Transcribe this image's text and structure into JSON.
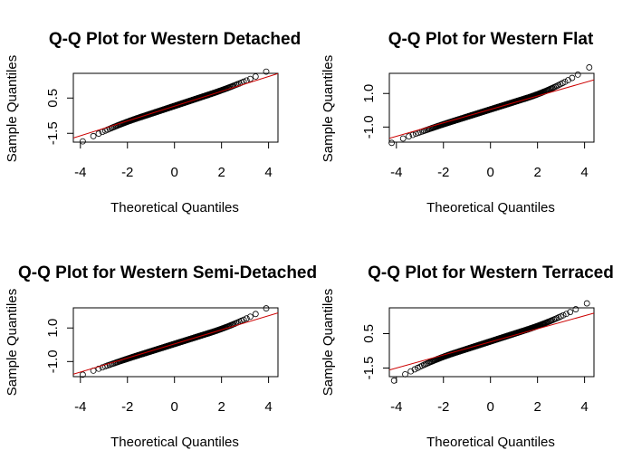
{
  "chart_data": [
    {
      "type": "scatter",
      "title": "Q-Q Plot for Western Detached",
      "xlabel": "Theoretical Quantiles",
      "ylabel": "Sample Quantiles",
      "xlim": [
        -4.3,
        4.4
      ],
      "ylim": [
        -2.0,
        1.9
      ],
      "xticks": [
        -4,
        -2,
        0,
        2,
        4
      ],
      "yticks": [
        -1.5,
        0.5
      ],
      "ytick_labels": [
        "-1.5",
        "0.5"
      ],
      "n_points": 400,
      "x_extent": [
        -3.9,
        3.9
      ],
      "dist": {
        "slope": 0.44,
        "intercept": 0.05,
        "lower_tail": 0.05,
        "upper_tail": 0.04
      },
      "reference_line": {
        "slope": 0.42,
        "intercept": 0.04
      },
      "grid": false,
      "point_color": "#000000",
      "line_color": "#cc0000"
    },
    {
      "type": "scatter",
      "title": "Q-Q Plot for Western Flat",
      "xlabel": "Theoretical Quantiles",
      "ylabel": "Sample Quantiles",
      "xlim": [
        -4.3,
        4.4
      ],
      "ylim": [
        -1.9,
        2.2
      ],
      "xticks": [
        -4,
        -2,
        0,
        2,
        4
      ],
      "yticks": [
        -1.0,
        1.0
      ],
      "ytick_labels": [
        "-1.0",
        "1.0"
      ],
      "n_points": 400,
      "x_extent": [
        -4.2,
        4.2
      ],
      "dist": {
        "slope": 0.44,
        "intercept": 0.05,
        "lower_tail": 0.02,
        "upper_tail": 0.09
      },
      "reference_line": {
        "slope": 0.4,
        "intercept": 0.05
      },
      "grid": false,
      "point_color": "#000000",
      "line_color": "#cc0000"
    },
    {
      "type": "scatter",
      "title": "Q-Q Plot for Western Semi-Detached",
      "xlabel": "Theoretical Quantiles",
      "ylabel": "Sample Quantiles",
      "xlim": [
        -4.3,
        4.4
      ],
      "ylim": [
        -1.9,
        2.2
      ],
      "xticks": [
        -4,
        -2,
        0,
        2,
        4
      ],
      "yticks": [
        -1.0,
        1.0
      ],
      "ytick_labels": [
        "-1.0",
        "1.0"
      ],
      "n_points": 400,
      "x_extent": [
        -3.9,
        3.9
      ],
      "dist": {
        "slope": 0.44,
        "intercept": 0.05,
        "lower_tail": 0.02,
        "upper_tail": 0.07
      },
      "reference_line": {
        "slope": 0.42,
        "intercept": 0.05
      },
      "grid": false,
      "point_color": "#000000",
      "line_color": "#cc0000"
    },
    {
      "type": "scatter",
      "title": "Q-Q Plot for Western Terraced",
      "xlabel": "Theoretical Quantiles",
      "ylabel": "Sample Quantiles",
      "xlim": [
        -4.3,
        4.4
      ],
      "ylim": [
        -2.0,
        2.0
      ],
      "xticks": [
        -4,
        -2,
        0,
        2,
        4
      ],
      "yticks": [
        -1.5,
        0.5
      ],
      "ytick_labels": [
        "-1.5",
        "0.5"
      ],
      "n_points": 400,
      "x_extent": [
        -4.1,
        4.1
      ],
      "dist": {
        "slope": 0.44,
        "intercept": 0.05,
        "lower_tail": 0.07,
        "upper_tail": 0.06
      },
      "reference_line": {
        "slope": 0.38,
        "intercept": 0.02
      },
      "grid": false,
      "point_color": "#000000",
      "line_color": "#cc0000"
    }
  ]
}
